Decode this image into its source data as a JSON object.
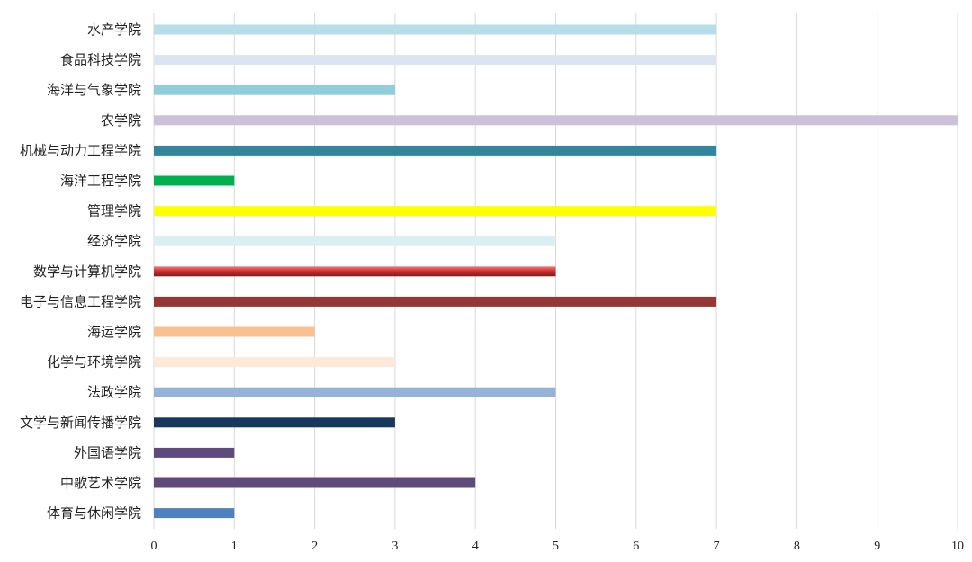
{
  "chart_data": {
    "type": "bar",
    "orientation": "horizontal",
    "title": "",
    "xlabel": "",
    "ylabel": "",
    "xlim": [
      0,
      10
    ],
    "x_ticks": [
      0,
      1,
      2,
      3,
      4,
      5,
      6,
      7,
      8,
      9,
      10
    ],
    "grid": "vertical",
    "legend": "none",
    "categories": [
      "水产学院",
      "食品科技学院",
      "海洋与气象学院",
      "农学院",
      "机械与动力工程学院",
      "海洋工程学院",
      "管理学院",
      "经济学院",
      "数学与计算机学院",
      "电子与信息工程学院",
      "海运学院",
      "化学与环境学院",
      "法政学院",
      "文学与新闻传播学院",
      "外国语学院",
      "中歌艺术学院",
      "体育与休闲学院"
    ],
    "values": [
      7,
      7,
      3,
      10,
      7,
      1,
      7,
      5,
      5,
      7,
      2,
      3,
      5,
      3,
      1,
      4,
      1
    ],
    "colors": [
      "#b7dde8",
      "#dbe5f1",
      "#92cddc",
      "#ccc0da",
      "#31859c",
      "#00b050",
      "#ffff00",
      "#daeef3",
      "#c0392b",
      "#953735",
      "#fac090",
      "#fde9d9",
      "#95b3d7",
      "#17375e",
      "#604a7b",
      "#604a7b",
      "#4f81bd"
    ],
    "gradient_bars": [
      8
    ]
  }
}
